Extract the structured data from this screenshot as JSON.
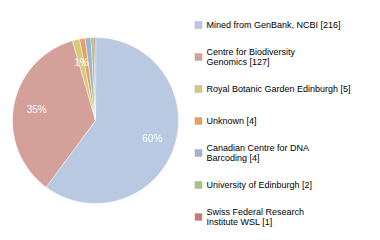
{
  "chart_data": {
    "type": "pie",
    "categories": [
      "Mined from GenBank, NCBI [216]",
      "Centre for Biodiversity\nGenomics [127]",
      "Royal Botanic Garden Edinburgh [5]",
      "Unknown [4]",
      "Canadian Centre for DNA\nBarcoding [4]",
      "University of Edinburgh [2]",
      "Swiss Federal Research\nInstitute WSL [1]"
    ],
    "values": [
      60.2,
      35.4,
      1.4,
      1.1,
      1.1,
      0.6,
      0.3
    ],
    "value_labels": [
      "60%",
      "35%",
      "1%",
      null,
      null,
      null,
      null
    ],
    "colors": [
      "#b8c9e1",
      "#d4a09a",
      "#d4cc7a",
      "#e8a060",
      "#9ab5d4",
      "#a0c880",
      "#c87878"
    ],
    "data_labels": true,
    "legend": "right"
  }
}
